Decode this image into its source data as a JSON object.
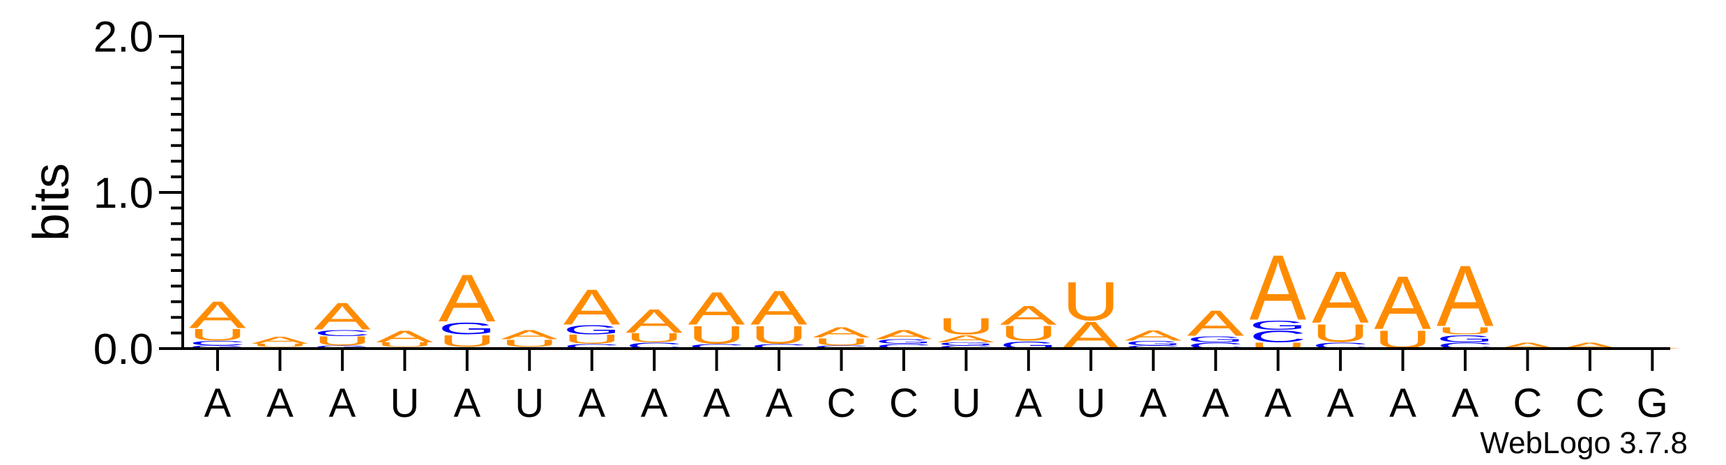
{
  "chart_data": {
    "type": "sequence-logo",
    "ylabel": "bits",
    "ylim": [
      0,
      2.0
    ],
    "yticks": [
      {
        "value": 0.0,
        "label": "0.0"
      },
      {
        "value": 1.0,
        "label": "1.0"
      },
      {
        "value": 2.0,
        "label": "2.0"
      }
    ],
    "ytick_minor_step": 0.1,
    "x_labels": [
      "A",
      "A",
      "A",
      "U",
      "A",
      "U",
      "A",
      "A",
      "A",
      "A",
      "C",
      "C",
      "U",
      "A",
      "U",
      "A",
      "A",
      "A",
      "A",
      "A",
      "A",
      "C",
      "C",
      "G"
    ],
    "colors": {
      "A": "#ff8c00",
      "U": "#ff8c00",
      "C": "#0000ff",
      "G": "#0000ff"
    },
    "positions": [
      {
        "stack": [
          {
            "letter": "G",
            "bits": 0.02
          },
          {
            "letter": "C",
            "bits": 0.03
          },
          {
            "letter": "U",
            "bits": 0.08
          },
          {
            "letter": "A",
            "bits": 0.18
          }
        ]
      },
      {
        "stack": [
          {
            "letter": "C",
            "bits": 0.01
          },
          {
            "letter": "U",
            "bits": 0.02
          },
          {
            "letter": "A",
            "bits": 0.05
          }
        ]
      },
      {
        "stack": [
          {
            "letter": "G",
            "bits": 0.02
          },
          {
            "letter": "U",
            "bits": 0.06
          },
          {
            "letter": "C",
            "bits": 0.04
          },
          {
            "letter": "A",
            "bits": 0.18
          }
        ]
      },
      {
        "stack": [
          {
            "letter": "C",
            "bits": 0.01
          },
          {
            "letter": "U",
            "bits": 0.03
          },
          {
            "letter": "A",
            "bits": 0.08
          }
        ]
      },
      {
        "stack": [
          {
            "letter": "C",
            "bits": 0.01
          },
          {
            "letter": "U",
            "bits": 0.08
          },
          {
            "letter": "G",
            "bits": 0.08
          },
          {
            "letter": "A",
            "bits": 0.32
          }
        ]
      },
      {
        "stack": [
          {
            "letter": "C",
            "bits": 0.01
          },
          {
            "letter": "U",
            "bits": 0.05
          },
          {
            "letter": "A",
            "bits": 0.06
          }
        ]
      },
      {
        "stack": [
          {
            "letter": "C",
            "bits": 0.03
          },
          {
            "letter": "U",
            "bits": 0.06
          },
          {
            "letter": "G",
            "bits": 0.06
          },
          {
            "letter": "A",
            "bits": 0.24
          }
        ]
      },
      {
        "stack": [
          {
            "letter": "C",
            "bits": 0.04
          },
          {
            "letter": "U",
            "bits": 0.06
          },
          {
            "letter": "A",
            "bits": 0.16
          }
        ]
      },
      {
        "stack": [
          {
            "letter": "C",
            "bits": 0.03
          },
          {
            "letter": "U",
            "bits": 0.12
          },
          {
            "letter": "A",
            "bits": 0.22
          }
        ]
      },
      {
        "stack": [
          {
            "letter": "C",
            "bits": 0.03
          },
          {
            "letter": "U",
            "bits": 0.12
          },
          {
            "letter": "A",
            "bits": 0.23
          }
        ]
      },
      {
        "stack": [
          {
            "letter": "C",
            "bits": 0.02
          },
          {
            "letter": "U",
            "bits": 0.05
          },
          {
            "letter": "A",
            "bits": 0.07
          }
        ]
      },
      {
        "stack": [
          {
            "letter": "C",
            "bits": 0.03
          },
          {
            "letter": "G",
            "bits": 0.03
          },
          {
            "letter": "A",
            "bits": 0.06
          }
        ]
      },
      {
        "stack": [
          {
            "letter": "C",
            "bits": 0.02
          },
          {
            "letter": "G",
            "bits": 0.02
          },
          {
            "letter": "A",
            "bits": 0.05
          },
          {
            "letter": "U",
            "bits": 0.11
          }
        ]
      },
      {
        "stack": [
          {
            "letter": "G",
            "bits": 0.05
          },
          {
            "letter": "U",
            "bits": 0.1
          },
          {
            "letter": "A",
            "bits": 0.13
          }
        ]
      },
      {
        "stack": [
          {
            "letter": "A",
            "bits": 0.18
          },
          {
            "letter": "U",
            "bits": 0.26
          }
        ]
      },
      {
        "stack": [
          {
            "letter": "C",
            "bits": 0.02
          },
          {
            "letter": "G",
            "bits": 0.03
          },
          {
            "letter": "A",
            "bits": 0.07
          }
        ]
      },
      {
        "stack": [
          {
            "letter": "C",
            "bits": 0.04
          },
          {
            "letter": "G",
            "bits": 0.04
          },
          {
            "letter": "A",
            "bits": 0.17
          }
        ]
      },
      {
        "stack": [
          {
            "letter": "U",
            "bits": 0.04
          },
          {
            "letter": "C",
            "bits": 0.08
          },
          {
            "letter": "G",
            "bits": 0.06
          },
          {
            "letter": "A",
            "bits": 0.44
          }
        ]
      },
      {
        "stack": [
          {
            "letter": "C",
            "bits": 0.04
          },
          {
            "letter": "U",
            "bits": 0.12
          },
          {
            "letter": "A",
            "bits": 0.35
          }
        ]
      },
      {
        "stack": [
          {
            "letter": "U",
            "bits": 0.12
          },
          {
            "letter": "A",
            "bits": 0.36
          }
        ]
      },
      {
        "stack": [
          {
            "letter": "C",
            "bits": 0.04
          },
          {
            "letter": "G",
            "bits": 0.05
          },
          {
            "letter": "U",
            "bits": 0.05
          },
          {
            "letter": "A",
            "bits": 0.41
          }
        ]
      },
      {
        "stack": [
          {
            "letter": "A",
            "bits": 0.04
          }
        ]
      },
      {
        "stack": [
          {
            "letter": "A",
            "bits": 0.04
          }
        ]
      },
      {
        "stack": [
          {
            "letter": "A",
            "bits": 0.01
          }
        ]
      }
    ],
    "grid": false,
    "legend": "none"
  },
  "credit": "WebLogo 3.7.8"
}
